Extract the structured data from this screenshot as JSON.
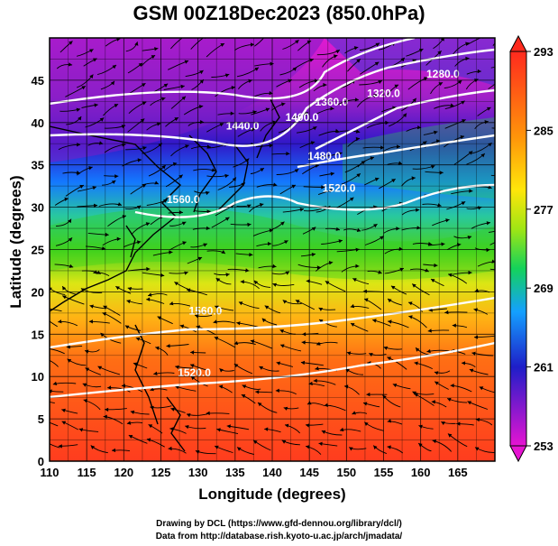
{
  "title": "GSM 00Z18Dec2023 (850.0hPa)",
  "xlabel": "Longitude (degrees)",
  "ylabel": "Latitude  (degrees)",
  "credit_line1": "Drawing by DCL (https://www.gfd-dennou.org/library/dcl/)",
  "credit_line2": "Data from http://database.rish.kyoto-u.ac.jp/arch/jmadata/",
  "map": {
    "lon_range": [
      110,
      170
    ],
    "lat_range": [
      0,
      50
    ],
    "lon_ticks": [
      110,
      115,
      120,
      125,
      130,
      135,
      140,
      145,
      150,
      155,
      160,
      165
    ],
    "lat_ticks": [
      0,
      5,
      10,
      15,
      20,
      25,
      30,
      35,
      40,
      45
    ],
    "grid": true,
    "fill_field": "temperature",
    "contour_field": "geopotential height",
    "vector_field": "wind streamlines"
  },
  "colorbar": {
    "ticks": [
      "293",
      "285",
      "277",
      "269",
      "261",
      "253"
    ],
    "range": [
      253,
      293
    ],
    "colors": [
      "#e60ad2",
      "#3a14cf",
      "#0a8cff",
      "#32d214",
      "#e6e60a",
      "#ff8c0a",
      "#ff3c1e"
    ]
  },
  "contour_labels": [
    {
      "text": "1280.0",
      "lon": 163,
      "lat": 45.3
    },
    {
      "text": "1320.0",
      "lon": 155,
      "lat": 43.0
    },
    {
      "text": "1360.0",
      "lon": 148,
      "lat": 42.0
    },
    {
      "text": "1400.0",
      "lon": 144,
      "lat": 40.2
    },
    {
      "text": "1440.0",
      "lon": 136,
      "lat": 39.2
    },
    {
      "text": "1480.0",
      "lon": 147,
      "lat": 35.6
    },
    {
      "text": "1520.0",
      "lon": 149,
      "lat": 31.8
    },
    {
      "text": "1560.0",
      "lon": 128,
      "lat": 30.5
    },
    {
      "text": "1560.0",
      "lon": 131,
      "lat": 17.3
    },
    {
      "text": "1520.0",
      "lon": 129.5,
      "lat": 10.0
    }
  ]
}
